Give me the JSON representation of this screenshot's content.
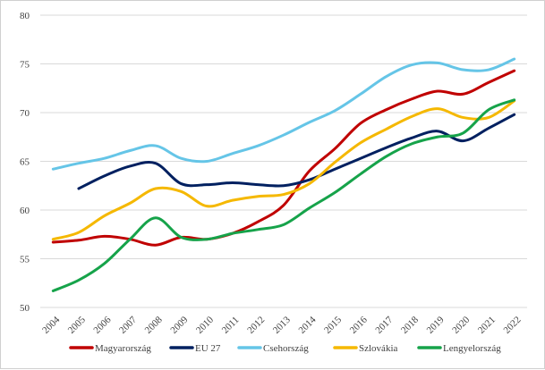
{
  "chart_data": {
    "type": "line",
    "title": "",
    "xlabel": "",
    "ylabel": "",
    "ylim": [
      50,
      80
    ],
    "yticks": [
      50,
      55,
      60,
      65,
      70,
      75,
      80
    ],
    "grid": "horizontal",
    "legend": "bottom",
    "x": [
      "2004",
      "2005",
      "2006",
      "2007",
      "2008",
      "2009",
      "2010",
      "2011",
      "2012",
      "2013",
      "2014",
      "2015",
      "2016",
      "2017",
      "2018",
      "2019",
      "2020",
      "2021",
      "2022"
    ],
    "series": [
      {
        "name": "Magyarország",
        "color": "#c00000",
        "values": [
          56.7,
          56.9,
          57.3,
          57.0,
          56.4,
          57.2,
          57.0,
          57.6,
          58.8,
          60.5,
          64.0,
          66.3,
          68.9,
          70.3,
          71.4,
          72.2,
          71.9,
          73.1,
          74.3
        ]
      },
      {
        "name": "EU 27",
        "color": "#002060",
        "values": [
          null,
          62.2,
          63.5,
          64.5,
          64.8,
          62.7,
          62.6,
          62.8,
          62.6,
          62.5,
          63.1,
          64.2,
          65.3,
          66.4,
          67.4,
          68.1,
          67.1,
          68.4,
          69.8
        ]
      },
      {
        "name": "Csehország",
        "color": "#65c5e7",
        "values": [
          64.2,
          64.8,
          65.3,
          66.1,
          66.6,
          65.3,
          65.0,
          65.8,
          66.6,
          67.7,
          69.0,
          70.2,
          71.9,
          73.7,
          74.9,
          75.1,
          74.4,
          74.4,
          75.5
        ]
      },
      {
        "name": "Szlovákia",
        "color": "#f5b800",
        "values": [
          57.0,
          57.7,
          59.4,
          60.7,
          62.2,
          61.9,
          60.4,
          61.0,
          61.4,
          61.6,
          62.7,
          64.9,
          66.9,
          68.3,
          69.6,
          70.4,
          69.5,
          69.5,
          71.2
        ]
      },
      {
        "name": "Lengyelország",
        "color": "#16a34a",
        "values": [
          51.7,
          52.8,
          54.5,
          57.0,
          59.2,
          57.2,
          57.0,
          57.6,
          58.0,
          58.5,
          60.2,
          61.8,
          63.7,
          65.5,
          66.8,
          67.5,
          67.9,
          70.3,
          71.3
        ]
      }
    ]
  }
}
